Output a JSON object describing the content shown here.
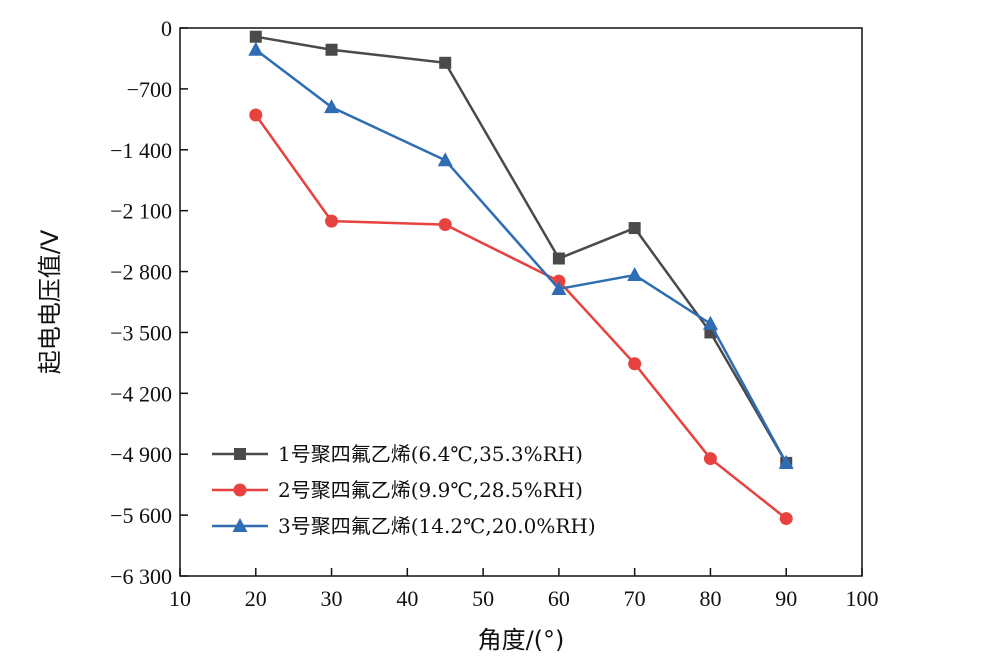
{
  "chart_data": {
    "type": "line",
    "xlabel": "角度/(°)",
    "ylabel": "起电电压值/V",
    "xlim": [
      10,
      100
    ],
    "ylim": [
      -6300,
      0
    ],
    "x_ticks": [
      10,
      20,
      30,
      40,
      50,
      60,
      70,
      80,
      90,
      100
    ],
    "x_tick_labels": [
      "10",
      "20",
      "30",
      "40",
      "50",
      "60",
      "70",
      "80",
      "90",
      "100"
    ],
    "y_ticks": [
      0,
      -700,
      -1400,
      -2100,
      -2800,
      -3500,
      -4200,
      -4900,
      -5600,
      -6300
    ],
    "y_tick_labels": [
      "0",
      "−700",
      "−1 400",
      "−2 100",
      "−2 800",
      "−3 500",
      "−4 200",
      "−4 900",
      "−5 600",
      "−6 300"
    ],
    "grid": false,
    "legend_position": "bottom-left",
    "x": [
      20,
      30,
      45,
      60,
      70,
      80,
      90
    ],
    "series": [
      {
        "name": "1号聚四氟乙烯(6.4℃,35.3%RH)",
        "color": "#4a4a4a",
        "marker": "square",
        "values": [
          -100,
          -250,
          -400,
          -2650,
          -2300,
          -3500,
          -5000
        ]
      },
      {
        "name": "2号聚四氟乙烯(9.9℃,28.5%RH)",
        "color": "#e8423f",
        "marker": "circle",
        "values": [
          -1000,
          -2220,
          -2260,
          -2910,
          -3860,
          -4950,
          -5640
        ]
      },
      {
        "name": "3号聚四氟乙烯(14.2℃,20.0%RH)",
        "color": "#2e6db4",
        "marker": "triangle",
        "values": [
          -250,
          -910,
          -1520,
          -3000,
          -2840,
          -3400,
          -5000
        ]
      }
    ]
  }
}
